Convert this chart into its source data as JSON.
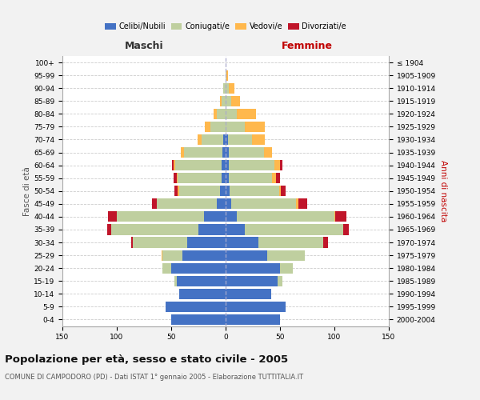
{
  "age_groups": [
    "0-4",
    "5-9",
    "10-14",
    "15-19",
    "20-24",
    "25-29",
    "30-34",
    "35-39",
    "40-44",
    "45-49",
    "50-54",
    "55-59",
    "60-64",
    "65-69",
    "70-74",
    "75-79",
    "80-84",
    "85-89",
    "90-94",
    "95-99",
    "100+"
  ],
  "birth_years": [
    "2000-2004",
    "1995-1999",
    "1990-1994",
    "1985-1989",
    "1980-1984",
    "1975-1979",
    "1970-1974",
    "1965-1969",
    "1960-1964",
    "1955-1959",
    "1950-1954",
    "1945-1949",
    "1940-1944",
    "1935-1939",
    "1930-1934",
    "1925-1929",
    "1920-1924",
    "1915-1919",
    "1910-1914",
    "1905-1909",
    "≤ 1904"
  ],
  "males_celibe": [
    50,
    55,
    43,
    45,
    50,
    40,
    35,
    25,
    20,
    8,
    5,
    4,
    4,
    3,
    2,
    0,
    0,
    0,
    0,
    0,
    0
  ],
  "males_coniugato": [
    0,
    0,
    0,
    2,
    8,
    18,
    50,
    80,
    80,
    55,
    38,
    40,
    42,
    35,
    20,
    14,
    8,
    4,
    2,
    0,
    0
  ],
  "males_vedovo": [
    0,
    0,
    0,
    0,
    0,
    1,
    0,
    0,
    0,
    0,
    1,
    1,
    2,
    3,
    4,
    5,
    3,
    1,
    0,
    0,
    0
  ],
  "males_divorziato": [
    0,
    0,
    0,
    0,
    0,
    0,
    2,
    4,
    8,
    5,
    3,
    3,
    1,
    0,
    0,
    0,
    0,
    0,
    0,
    0,
    0
  ],
  "females_nubile": [
    50,
    55,
    42,
    48,
    50,
    38,
    30,
    18,
    10,
    5,
    4,
    3,
    3,
    3,
    2,
    0,
    0,
    0,
    0,
    0,
    0
  ],
  "females_coniugata": [
    0,
    0,
    0,
    4,
    12,
    35,
    60,
    90,
    90,
    60,
    45,
    40,
    42,
    32,
    22,
    18,
    10,
    5,
    3,
    1,
    0
  ],
  "females_vedova": [
    0,
    0,
    0,
    0,
    0,
    0,
    0,
    0,
    1,
    2,
    2,
    3,
    5,
    8,
    12,
    18,
    18,
    8,
    5,
    1,
    0
  ],
  "females_divorziata": [
    0,
    0,
    0,
    0,
    0,
    0,
    4,
    5,
    10,
    8,
    4,
    4,
    2,
    0,
    0,
    0,
    0,
    0,
    0,
    0,
    0
  ],
  "colors": {
    "celibe_nubile": "#4472C4",
    "coniugato_a": "#BFCF9F",
    "vedovo_a": "#FFB84D",
    "divorziato_a": "#C0152A"
  },
  "xlim": 150,
  "title": "Popolazione per età, sesso e stato civile - 2005",
  "subtitle": "COMUNE DI CAMPODORO (PD) - Dati ISTAT 1° gennaio 2005 - Elaborazione TUTTITALIA.IT",
  "label_maschi": "Maschi",
  "label_femmine": "Femmine",
  "ylabel_left": "Fasce di età",
  "ylabel_right": "Anni di nascita",
  "legend_labels": [
    "Celibi/Nubili",
    "Coniugati/e",
    "Vedovi/e",
    "Divorziati/e"
  ],
  "bg_color": "#f2f2f2",
  "plot_bg_color": "#ffffff",
  "grid_color": "#cccccc"
}
